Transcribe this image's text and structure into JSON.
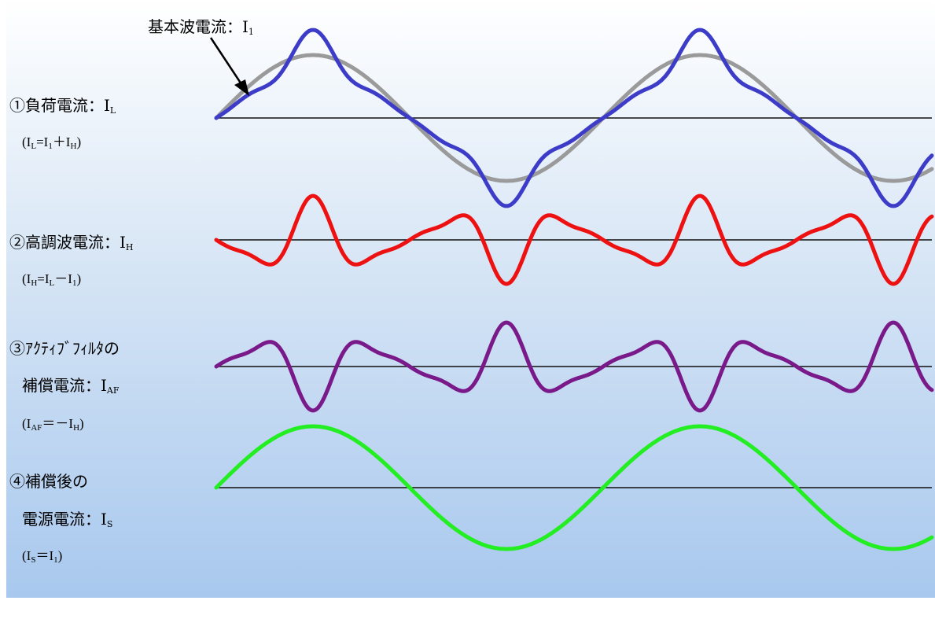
{
  "annotation": {
    "name": "基本波電流：",
    "sym": "I",
    "sub": "1"
  },
  "rows": [
    {
      "line1": "①負荷電流：",
      "sym": "I",
      "sub": "L",
      "formula": {
        "a": "(I",
        "a_sub": "L",
        "b": "=I",
        "b_sub": "1",
        "c": "＋I",
        "c_sub": "H",
        "d": ")"
      }
    },
    {
      "line1": "②高調波電流：",
      "sym": "I",
      "sub": "H",
      "formula": {
        "a": "(I",
        "a_sub": "H",
        "b": "=I",
        "b_sub": "L",
        "c": "－I",
        "c_sub": "1",
        "d": ")"
      }
    },
    {
      "line1": "③ｱｸﾃｨﾌﾞﾌｨﾙﾀの",
      "line2": "補償電流：",
      "sym": "I",
      "sub": "AF",
      "formula": {
        "a": "(I",
        "a_sub": "AF",
        "b": "＝－I",
        "b_sub": "H",
        "d": ")"
      }
    },
    {
      "line1": "④補償後の",
      "line2": "電源電流：",
      "sym": "I",
      "sub": "S",
      "formula": {
        "a": "(I",
        "a_sub": "S",
        "b": "＝I",
        "b_sub": "1",
        "d": ")"
      }
    }
  ],
  "colors": {
    "load": "#3c3cc8",
    "fundamental": "#9a9a9a",
    "harmonic": "#ee1111",
    "active_filter": "#7a1a8a",
    "source": "#22ee22",
    "axis": "#111111"
  }
}
